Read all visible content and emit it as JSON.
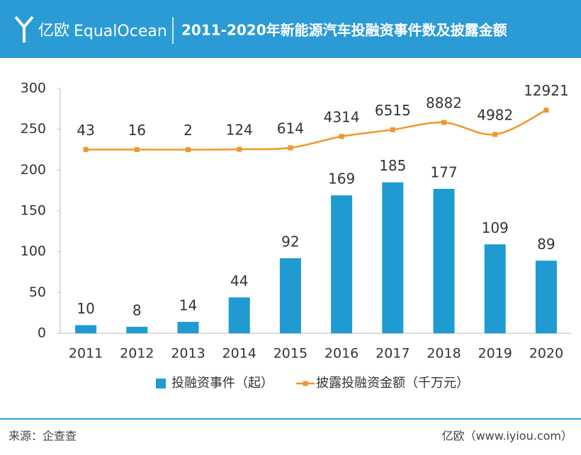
{
  "header": {
    "logo_cn": "亿欧",
    "logo_en": "EqualOcean"
  },
  "chart_data": {
    "type": "bar",
    "title": "2011-2020年新能源汽车投融资事件数及披露金额",
    "categories": [
      "2011",
      "2012",
      "2013",
      "2014",
      "2015",
      "2016",
      "2017",
      "2018",
      "2019",
      "2020"
    ],
    "series": [
      {
        "name": "投融资事件（起）",
        "type": "bar",
        "color": "#1f9bd1",
        "values": [
          10,
          8,
          14,
          44,
          92,
          169,
          185,
          177,
          109,
          89
        ]
      },
      {
        "name": "披露投融资金额（千万元）",
        "type": "line",
        "axis": "y2",
        "color": "#f0962a",
        "values": [
          43,
          16,
          2,
          124,
          614,
          4314,
          6515,
          8882,
          4982,
          12921
        ]
      }
    ],
    "ylim": [
      0,
      300
    ],
    "yticks": [
      0,
      50,
      100,
      150,
      200,
      250,
      300
    ],
    "y2lim": [
      -60000,
      20000
    ]
  },
  "footer": {
    "source": "来源：企查查",
    "site": "亿欧（www.iyiou.com）"
  }
}
